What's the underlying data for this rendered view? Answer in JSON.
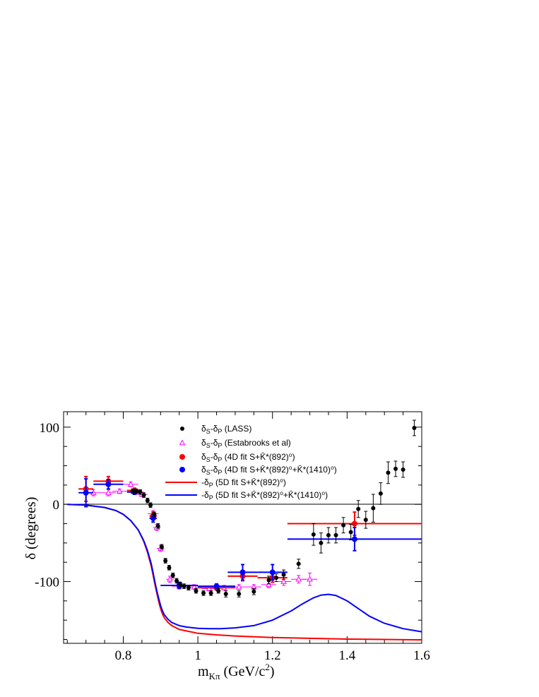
{
  "chart_data": {
    "type": "scatter",
    "title": "",
    "xlabel": "m_Kπ (GeV/c²)",
    "ylabel": "δ (degrees)",
    "xlim": [
      0.64,
      1.6
    ],
    "ylim": [
      -180,
      120
    ],
    "xticks": [
      0.8,
      1.0,
      1.2,
      1.4,
      1.6
    ],
    "yticks": [
      100,
      0,
      -100
    ],
    "xtick_labels": [
      "0.8",
      "1",
      "1.2",
      "1.4",
      "1.6"
    ],
    "ytick_labels": [
      "100",
      "0",
      "-100"
    ],
    "zero_line": true,
    "grid": false,
    "legend_position": "top-center",
    "series": [
      {
        "key": "lass",
        "name": "δS-δP (LASS)",
        "kind": "points",
        "marker": "circle",
        "color": "#000000",
        "points": [
          {
            "x": 0.825,
            "y": 17,
            "err": 3
          },
          {
            "x": 0.835,
            "y": 17,
            "err": 3
          },
          {
            "x": 0.845,
            "y": 16,
            "err": 3
          },
          {
            "x": 0.855,
            "y": 12,
            "err": 3
          },
          {
            "x": 0.865,
            "y": 5,
            "err": 3
          },
          {
            "x": 0.873,
            "y": -1,
            "err": 3
          },
          {
            "x": 0.883,
            "y": -13,
            "err": 3
          },
          {
            "x": 0.893,
            "y": -28,
            "err": 3
          },
          {
            "x": 0.903,
            "y": -55,
            "err": 3
          },
          {
            "x": 0.913,
            "y": -73,
            "err": 3
          },
          {
            "x": 0.923,
            "y": -82,
            "err": 3
          },
          {
            "x": 0.933,
            "y": -92,
            "err": 3
          },
          {
            "x": 0.943,
            "y": -99,
            "err": 3
          },
          {
            "x": 0.953,
            "y": -104,
            "err": 3
          },
          {
            "x": 0.963,
            "y": -106,
            "err": 3
          },
          {
            "x": 0.975,
            "y": -108,
            "err": 3
          },
          {
            "x": 0.995,
            "y": -112,
            "err": 3
          },
          {
            "x": 1.015,
            "y": -115,
            "err": 3
          },
          {
            "x": 1.035,
            "y": -115,
            "err": 3
          },
          {
            "x": 1.055,
            "y": -112,
            "err": 3
          },
          {
            "x": 1.075,
            "y": -116,
            "err": 4
          },
          {
            "x": 1.11,
            "y": -116,
            "err": 4
          },
          {
            "x": 1.15,
            "y": -113,
            "err": 4
          },
          {
            "x": 1.19,
            "y": -98,
            "err": 5
          },
          {
            "x": 1.21,
            "y": -95,
            "err": 5
          },
          {
            "x": 1.23,
            "y": -91,
            "err": 6
          },
          {
            "x": 1.27,
            "y": -77,
            "err": 6
          },
          {
            "x": 1.31,
            "y": -39,
            "err": 14
          },
          {
            "x": 1.33,
            "y": -50,
            "err": 13
          },
          {
            "x": 1.35,
            "y": -40,
            "err": 10
          },
          {
            "x": 1.37,
            "y": -40,
            "err": 10
          },
          {
            "x": 1.39,
            "y": -27,
            "err": 10
          },
          {
            "x": 1.41,
            "y": -36,
            "err": 10
          },
          {
            "x": 1.43,
            "y": -6,
            "err": 11
          },
          {
            "x": 1.45,
            "y": -20,
            "err": 11
          },
          {
            "x": 1.47,
            "y": -5,
            "err": 18
          },
          {
            "x": 1.49,
            "y": 14,
            "err": 14
          },
          {
            "x": 1.51,
            "y": 41,
            "err": 14
          },
          {
            "x": 1.53,
            "y": 46,
            "err": 10
          },
          {
            "x": 1.55,
            "y": 45,
            "err": 10
          },
          {
            "x": 1.58,
            "y": 99,
            "err": 10
          }
        ]
      },
      {
        "key": "estabrooks",
        "name": "δS-δP (Estabrooks et al)",
        "kind": "points",
        "marker": "triangle-open",
        "color": "#ff00ff",
        "points": [
          {
            "x": 0.72,
            "y": 15,
            "err": 4,
            "xerr": 0.02
          },
          {
            "x": 0.76,
            "y": 15,
            "err": 4,
            "xerr": 0.02
          },
          {
            "x": 0.79,
            "y": 17,
            "err": 3,
            "xerr": 0.02
          },
          {
            "x": 0.82,
            "y": 26,
            "err": 3,
            "xerr": 0.02
          },
          {
            "x": 0.85,
            "y": 13,
            "err": 3,
            "xerr": 0.015
          },
          {
            "x": 0.88,
            "y": -12,
            "err": 4,
            "xerr": 0.015
          },
          {
            "x": 0.89,
            "y": -30,
            "err": 4,
            "xerr": 0.01
          },
          {
            "x": 0.9,
            "y": -57,
            "err": 4,
            "xerr": 0.01
          },
          {
            "x": 0.925,
            "y": -97,
            "err": 4,
            "xerr": 0.01
          },
          {
            "x": 0.95,
            "y": -106,
            "err": 3,
            "xerr": 0.02
          },
          {
            "x": 0.99,
            "y": -107,
            "err": 3,
            "xerr": 0.02
          },
          {
            "x": 1.03,
            "y": -109,
            "err": 3,
            "xerr": 0.02
          },
          {
            "x": 1.07,
            "y": -108,
            "err": 3,
            "xerr": 0.02
          },
          {
            "x": 1.11,
            "y": -107,
            "err": 3,
            "xerr": 0.02
          },
          {
            "x": 1.15,
            "y": -107,
            "err": 3,
            "xerr": 0.02
          },
          {
            "x": 1.19,
            "y": -104,
            "err": 4,
            "xerr": 0.02
          },
          {
            "x": 1.23,
            "y": -100,
            "err": 5,
            "xerr": 0.02
          },
          {
            "x": 1.27,
            "y": -97,
            "err": 5,
            "xerr": 0.02
          },
          {
            "x": 1.3,
            "y": -97,
            "err": 8,
            "xerr": 0.02
          }
        ]
      },
      {
        "key": "fit4d_red",
        "name": "δS-δP (4D fit S+K̄*(892)⁰)",
        "kind": "points",
        "marker": "circle",
        "color": "#ff0000",
        "points": [
          {
            "x": 0.7,
            "y": 20,
            "err": 16,
            "xerr": 0.02
          },
          {
            "x": 0.76,
            "y": 30,
            "err": 6,
            "xerr": 0.04
          },
          {
            "x": 0.83,
            "y": 18,
            "err": 3,
            "xerr": 0.02
          },
          {
            "x": 0.88,
            "y": -15,
            "err": 5,
            "xerr": 0.01
          },
          {
            "x": 0.95,
            "y": -105,
            "err": 4,
            "xerr": 0.05
          },
          {
            "x": 1.05,
            "y": -108,
            "err": 3,
            "xerr": 0.05
          },
          {
            "x": 1.12,
            "y": -93,
            "err": 6,
            "xerr": 0.04
          },
          {
            "x": 1.2,
            "y": -95,
            "err": 6,
            "xerr": 0.04
          },
          {
            "x": 1.42,
            "y": -25,
            "err": 15,
            "xerr": 0.18
          }
        ]
      },
      {
        "key": "fit4d_blue",
        "name": "δS-δP (4D fit S+K̄*(892)⁰+K̄*(1410)⁰)",
        "kind": "points",
        "marker": "circle",
        "color": "#0000ff",
        "points": [
          {
            "x": 0.7,
            "y": 15,
            "err": 18,
            "xerr": 0.02
          },
          {
            "x": 0.76,
            "y": 26,
            "err": 6,
            "xerr": 0.04
          },
          {
            "x": 0.83,
            "y": 16,
            "err": 3,
            "xerr": 0.02
          },
          {
            "x": 0.88,
            "y": -18,
            "err": 5,
            "xerr": 0.01
          },
          {
            "x": 0.95,
            "y": -105,
            "err": 4,
            "xerr": 0.05
          },
          {
            "x": 1.05,
            "y": -106,
            "err": 3,
            "xerr": 0.05
          },
          {
            "x": 1.12,
            "y": -88,
            "err": 10,
            "xerr": 0.04
          },
          {
            "x": 1.2,
            "y": -88,
            "err": 10,
            "xerr": 0.04
          },
          {
            "x": 1.42,
            "y": -45,
            "err": 15,
            "xerr": 0.18
          }
        ]
      },
      {
        "key": "fit5d_red",
        "name": "-δP (5D fit S+K̄*(892)⁰)",
        "kind": "curve",
        "color": "#ff0000",
        "x": [
          0.65,
          0.7,
          0.75,
          0.78,
          0.8,
          0.82,
          0.84,
          0.855,
          0.865,
          0.875,
          0.88,
          0.885,
          0.89,
          0.895,
          0.9,
          0.905,
          0.91,
          0.92,
          0.93,
          0.95,
          0.97,
          1.0,
          1.05,
          1.1,
          1.2,
          1.3,
          1.4,
          1.5,
          1.6
        ],
        "y": [
          0,
          -1,
          -4,
          -8,
          -13,
          -21,
          -33,
          -48,
          -62,
          -80,
          -92,
          -104,
          -115,
          -126,
          -135,
          -142,
          -147,
          -153,
          -157,
          -162,
          -164,
          -167,
          -169,
          -170.5,
          -172.5,
          -173.5,
          -174.5,
          -175,
          -175.5
        ]
      },
      {
        "key": "fit5d_blue",
        "name": "-δP (5D fit S+K̄*(892)⁰+K̄*(1410)⁰)",
        "kind": "curve",
        "color": "#0000ff",
        "x": [
          0.65,
          0.7,
          0.75,
          0.78,
          0.8,
          0.82,
          0.84,
          0.855,
          0.865,
          0.875,
          0.88,
          0.885,
          0.89,
          0.895,
          0.9,
          0.905,
          0.91,
          0.92,
          0.93,
          0.95,
          0.97,
          1.0,
          1.03,
          1.06,
          1.1,
          1.15,
          1.2,
          1.25,
          1.28,
          1.31,
          1.33,
          1.35,
          1.37,
          1.4,
          1.43,
          1.46,
          1.5,
          1.55,
          1.6
        ],
        "y": [
          0,
          -1,
          -4,
          -8,
          -13,
          -21,
          -33,
          -47,
          -60,
          -77,
          -89,
          -101,
          -112,
          -122,
          -131,
          -138,
          -143,
          -149,
          -153,
          -157,
          -159,
          -160.5,
          -161,
          -161,
          -160,
          -157,
          -150,
          -138,
          -129,
          -121,
          -117.5,
          -116.5,
          -118,
          -125,
          -135,
          -145,
          -154,
          -161,
          -165
        ]
      }
    ]
  },
  "legend": {
    "lass": {
      "main": "δ",
      "sub1": "S",
      "mid": "-δ",
      "sub2": "P",
      "rest": " (LASS)"
    },
    "estabrooks": {
      "main": "δ",
      "sub1": "S",
      "mid": "-δ",
      "sub2": "P",
      "rest": " (Estabrooks et al)"
    },
    "fit4d_red": {
      "main": "δ",
      "sub1": "S",
      "mid": "-δ",
      "sub2": "P",
      "rest": "  (4D fit S+K̄*(892)⁰)"
    },
    "fit4d_blue": {
      "main": " δ",
      "sub1": "S",
      "mid": "-δ",
      "sub2": "P",
      "rest": " (4D fit S+K̄*(892)⁰+K̄*(1410)⁰)"
    },
    "fit5d_red": {
      "main": "-δ",
      "sub1": "",
      "mid": "",
      "sub2": "P",
      "rest": " (5D fit S+K̄*(892)⁰)"
    },
    "fit5d_blue": {
      "main": "-δ",
      "sub1": "",
      "mid": "",
      "sub2": "P",
      "rest": " (5D fit S+K̄*(892)⁰+K̄*(1410)⁰)"
    }
  },
  "axis_titles": {
    "x_main": "m",
    "x_sub": "Kπ",
    "x_rest": " (GeV/c",
    "x_sup": "2",
    "x_close": ")",
    "y": "δ (degrees)"
  }
}
